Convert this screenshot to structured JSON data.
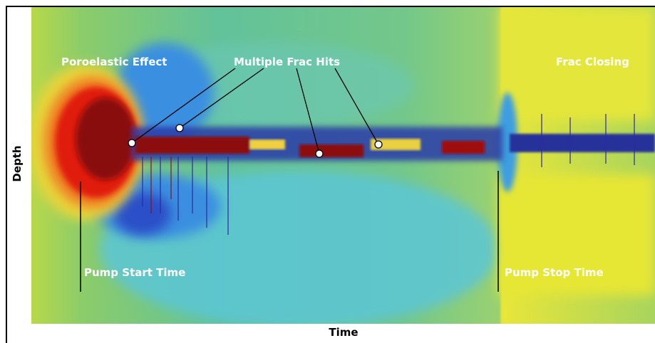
{
  "axes": {
    "x_label": "Time",
    "y_label": "Depth"
  },
  "annotations": [
    {
      "text": "Poroelastic Effect"
    },
    {
      "text": "Multiple Frac Hits"
    },
    {
      "text": "Frac Closing"
    },
    {
      "text": "Pump Start Time"
    },
    {
      "text": "Pump Stop Time"
    }
  ]
}
